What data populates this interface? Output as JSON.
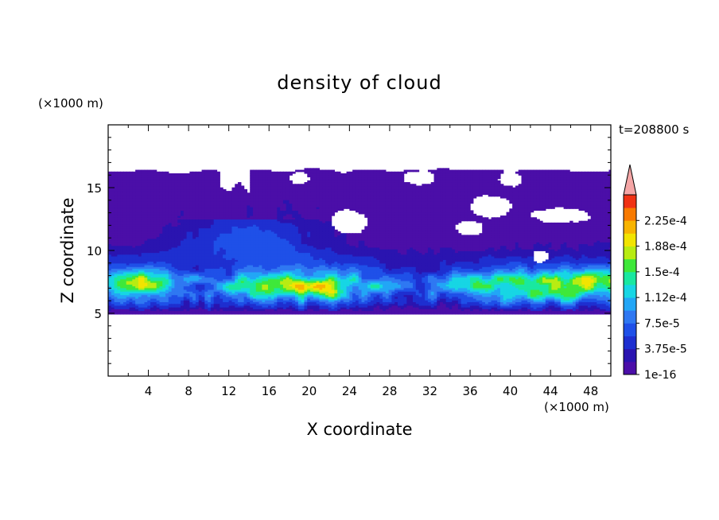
{
  "chart_data": {
    "type": "heatmap",
    "title": "density of cloud",
    "time_label": "t=208800 s",
    "xlabel": "X coordinate",
    "ylabel": "Z coordinate",
    "x_unit": "(×1000 m)",
    "y_unit": "(×1000 m)",
    "xlim": [
      0,
      50
    ],
    "ylim": [
      0,
      20
    ],
    "x_ticks": [
      "4",
      "8",
      "12",
      "16",
      "20",
      "24",
      "28",
      "32",
      "36",
      "40",
      "44",
      "48"
    ],
    "y_ticks": [
      "5",
      "10",
      "15"
    ],
    "colorbar": {
      "labels": [
        "2.25e-4",
        "1.88e-4",
        "1.5e-4",
        "1.12e-4",
        "7.5e-5",
        "3.75e-5",
        "1e-16"
      ],
      "levels": [
        0.0,
        1.875e-05,
        3.75e-05,
        5.625e-05,
        7.5e-05,
        9.375e-05,
        0.0001125,
        0.00013125,
        0.00015,
        0.00016875,
        0.0001875,
        0.00020625,
        0.000225,
        0.00024375
      ],
      "colors": [
        "#4b0ea8",
        "#2a14b0",
        "#1e2fd0",
        "#1f50e8",
        "#2f78f2",
        "#22a6f6",
        "#17d6e4",
        "#19e8a0",
        "#3ee83a",
        "#b8ec12",
        "#f2e400",
        "#f8b400",
        "#f87a00",
        "#f03214"
      ],
      "overflow_color": "#f5a6a6"
    },
    "field_description": "cloud layer between z about 5 and 16.5 km spanning full x domain; highest densities near z 6-8 km"
  }
}
